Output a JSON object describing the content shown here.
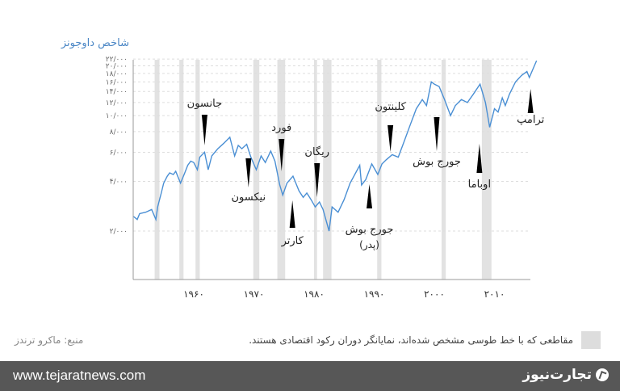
{
  "chart_data": {
    "type": "line",
    "title": "شاخص داوجونز",
    "yscale": "log",
    "ylim": [
      1750,
      23000
    ],
    "xlim": [
      1950,
      2017
    ],
    "y_ticks": [
      {
        "v": 2000,
        "label": "۲/۰۰۰"
      },
      {
        "v": 4000,
        "label": "۴/۰۰۰"
      },
      {
        "v": 6000,
        "label": "۶/۰۰۰"
      },
      {
        "v": 8000,
        "label": "۸/۰۰۰"
      },
      {
        "v": 10000,
        "label": "۱۰/۰۰۰"
      },
      {
        "v": 12000,
        "label": "۱۲/۰۰۰"
      },
      {
        "v": 14000,
        "label": "۱۴/۰۰۰"
      },
      {
        "v": 16000,
        "label": "۱۶/۰۰۰"
      },
      {
        "v": 18000,
        "label": "۱۸/۰۰۰"
      },
      {
        "v": 20000,
        "label": "۲۰/۰۰۰"
      },
      {
        "v": 22000,
        "label": "۲۲/۰۰۰"
      }
    ],
    "x_ticks": [
      {
        "v": 1960,
        "label": "۱۹۶۰"
      },
      {
        "v": 1970,
        "label": "۱۹۷۰"
      },
      {
        "v": 1980,
        "label": "۱۹۸۰"
      },
      {
        "v": 1990,
        "label": "۱۹۹۰"
      },
      {
        "v": 2000,
        "label": "۲۰۰۰"
      },
      {
        "v": 2010,
        "label": "۲۰۱۰"
      }
    ],
    "recessions": [
      [
        1953.5,
        1954.3
      ],
      [
        1957.6,
        1958.3
      ],
      [
        1960.3,
        1961.0
      ],
      [
        1969.9,
        1970.9
      ],
      [
        1973.9,
        1975.2
      ],
      [
        1980.0,
        1980.5
      ],
      [
        1981.5,
        1982.9
      ],
      [
        1990.5,
        1991.2
      ],
      [
        2001.2,
        2001.9
      ],
      [
        2007.9,
        2009.5
      ]
    ],
    "series": [
      {
        "name": "Dow Jones",
        "color": "#4a8fd4",
        "points": [
          [
            1950,
            2450
          ],
          [
            1950.6,
            2350
          ],
          [
            1951,
            2550
          ],
          [
            1952,
            2600
          ],
          [
            1953,
            2700
          ],
          [
            1953.7,
            2350
          ],
          [
            1954,
            2800
          ],
          [
            1954.6,
            3400
          ],
          [
            1955,
            3900
          ],
          [
            1955.6,
            4300
          ],
          [
            1956,
            4500
          ],
          [
            1956.6,
            4400
          ],
          [
            1957,
            4600
          ],
          [
            1957.8,
            3900
          ],
          [
            1958.4,
            4400
          ],
          [
            1959,
            5000
          ],
          [
            1959.5,
            5300
          ],
          [
            1960,
            5200
          ],
          [
            1960.6,
            4700
          ],
          [
            1961,
            5600
          ],
          [
            1961.8,
            6000
          ],
          [
            1962.4,
            4700
          ],
          [
            1963,
            5700
          ],
          [
            1964,
            6300
          ],
          [
            1965,
            6800
          ],
          [
            1966,
            7400
          ],
          [
            1966.8,
            5700
          ],
          [
            1967.4,
            6600
          ],
          [
            1968,
            6300
          ],
          [
            1968.8,
            6700
          ],
          [
            1969.5,
            5600
          ],
          [
            1970.4,
            4700
          ],
          [
            1971.2,
            5700
          ],
          [
            1971.9,
            5200
          ],
          [
            1972.8,
            6100
          ],
          [
            1973.5,
            5300
          ],
          [
            1974.3,
            3800
          ],
          [
            1974.8,
            3300
          ],
          [
            1975.5,
            3900
          ],
          [
            1976.5,
            4300
          ],
          [
            1977.5,
            3500
          ],
          [
            1978.2,
            3200
          ],
          [
            1978.8,
            3400
          ],
          [
            1979.5,
            3100
          ],
          [
            1980.2,
            2800
          ],
          [
            1980.9,
            3000
          ],
          [
            1981.5,
            2700
          ],
          [
            1982.5,
            2000
          ],
          [
            1983,
            2800
          ],
          [
            1984,
            2600
          ],
          [
            1985,
            3100
          ],
          [
            1986,
            3900
          ],
          [
            1987.6,
            5000
          ],
          [
            1987.9,
            3800
          ],
          [
            1988.6,
            4100
          ],
          [
            1989.6,
            5100
          ],
          [
            1990.6,
            4400
          ],
          [
            1991.3,
            5100
          ],
          [
            1992,
            5400
          ],
          [
            1993,
            5800
          ],
          [
            1994,
            5600
          ],
          [
            1995,
            7000
          ],
          [
            1996,
            8800
          ],
          [
            1997,
            11000
          ],
          [
            1998,
            12500
          ],
          [
            1998.7,
            11500
          ],
          [
            1999.5,
            16000
          ],
          [
            2000,
            15500
          ],
          [
            2000.8,
            15000
          ],
          [
            2001.7,
            12500
          ],
          [
            2002.7,
            10000
          ],
          [
            2003.5,
            11500
          ],
          [
            2004.5,
            12500
          ],
          [
            2005.5,
            12000
          ],
          [
            2006.5,
            13500
          ],
          [
            2007.6,
            15500
          ],
          [
            2008.5,
            12000
          ],
          [
            2009.2,
            8500
          ],
          [
            2010,
            11000
          ],
          [
            2010.6,
            10500
          ],
          [
            2011.3,
            12800
          ],
          [
            2011.8,
            11500
          ],
          [
            2012.5,
            13500
          ],
          [
            2013.5,
            16000
          ],
          [
            2014.5,
            17500
          ],
          [
            2015.4,
            18500
          ],
          [
            2015.8,
            17000
          ],
          [
            2016.5,
            19500
          ],
          [
            2017,
            21500
          ]
        ]
      }
    ],
    "annotations": [
      {
        "label": "جانسون",
        "year": 1961.8,
        "dir": "down"
      },
      {
        "label": "نیکسون",
        "year": 1969.1,
        "dir": "up"
      },
      {
        "label": "فورد",
        "year": 1974.6,
        "dir": "down"
      },
      {
        "label": "کارتر",
        "year": 1976.4,
        "dir": "up"
      },
      {
        "label": "ریگان",
        "year": 1980.5,
        "dir": "down"
      },
      {
        "label": "جورج بوش",
        "sub": "(پدر)",
        "year": 1989.2,
        "dir": "up"
      },
      {
        "label": "کلینتون",
        "year": 1992.7,
        "dir": "down"
      },
      {
        "label": "جورج بوش",
        "year": 2000.4,
        "dir": "down"
      },
      {
        "label": "اوباما",
        "year": 2007.5,
        "dir": "up"
      },
      {
        "label": "ترامپ",
        "year": 2016,
        "dir": "up"
      }
    ]
  },
  "legend": "مقاطعی که با خط طوسی مشخص شده‌اند، نمایانگر دوران رکود اقتصادی هستند.",
  "source": "منبع: ماکرو ترندز",
  "footer": {
    "url": "www.tejaratnews.com",
    "brand": "تجارت‌نیوز"
  }
}
